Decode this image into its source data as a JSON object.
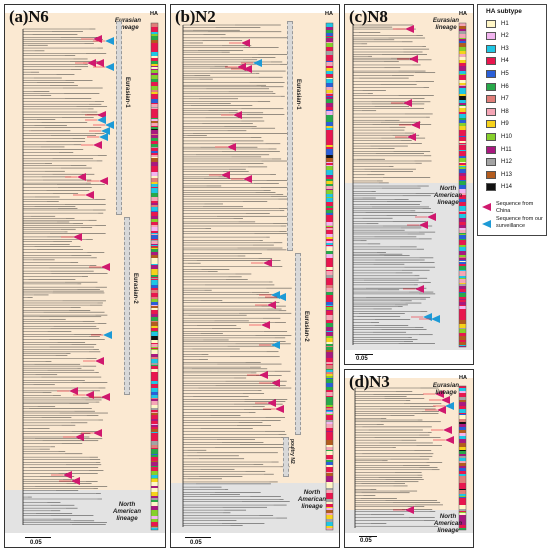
{
  "panels": {
    "a": {
      "title": "(a)N6",
      "ha_header": "HA",
      "scale": "0.05",
      "lineage_top": "Eurasian lineage",
      "lineage_bottom": "North American lineage",
      "clades": [
        "Eurasian-1",
        "Eurasian-2"
      ]
    },
    "b": {
      "title": "(b)N2",
      "ha_header": "HA",
      "scale": "0.05",
      "lineage_bottom": "North American lineage",
      "clades": [
        "Eurasian-1",
        "Eurasian-2",
        "poultry N2"
      ]
    },
    "c": {
      "title": "(c)N8",
      "ha_header": "HA",
      "scale": "0.05",
      "lineage_top": "Eurasian lineage",
      "lineage_bottom": "North American lineage"
    },
    "d": {
      "title": "(d)N3",
      "ha_header": "HA",
      "scale": "0.05",
      "lineage_top": "Eurasian lineage",
      "lineage_bottom": "North American lineage"
    }
  },
  "legend": {
    "title": "HA subtype",
    "items": [
      {
        "label": "H1",
        "color": "#fff6c7"
      },
      {
        "label": "H2",
        "color": "#f2b5f0"
      },
      {
        "label": "H3",
        "color": "#1fc6e4"
      },
      {
        "label": "H4",
        "color": "#e8164e"
      },
      {
        "label": "H5",
        "color": "#2a5fd8"
      },
      {
        "label": "H6",
        "color": "#27a94a"
      },
      {
        "label": "H7",
        "color": "#e07e79"
      },
      {
        "label": "H8",
        "color": "#f5a6b6"
      },
      {
        "label": "H9",
        "color": "#f6d21b"
      },
      {
        "label": "H10",
        "color": "#86d02b"
      },
      {
        "label": "H11",
        "color": "#a9187f"
      },
      {
        "label": "H12",
        "color": "#a3a3a3"
      },
      {
        "label": "H13",
        "color": "#b35c1e"
      },
      {
        "label": "H14",
        "color": "#111111"
      }
    ],
    "china_label": "Sequence from China",
    "china_color": "#d0186e",
    "surveillance_label": "Sequence from our surveillance",
    "surveillance_color": "#1d9ad6"
  },
  "style": {
    "eurasian_bg": "#fbe9d2",
    "na_bg": "#e3e3e3"
  }
}
